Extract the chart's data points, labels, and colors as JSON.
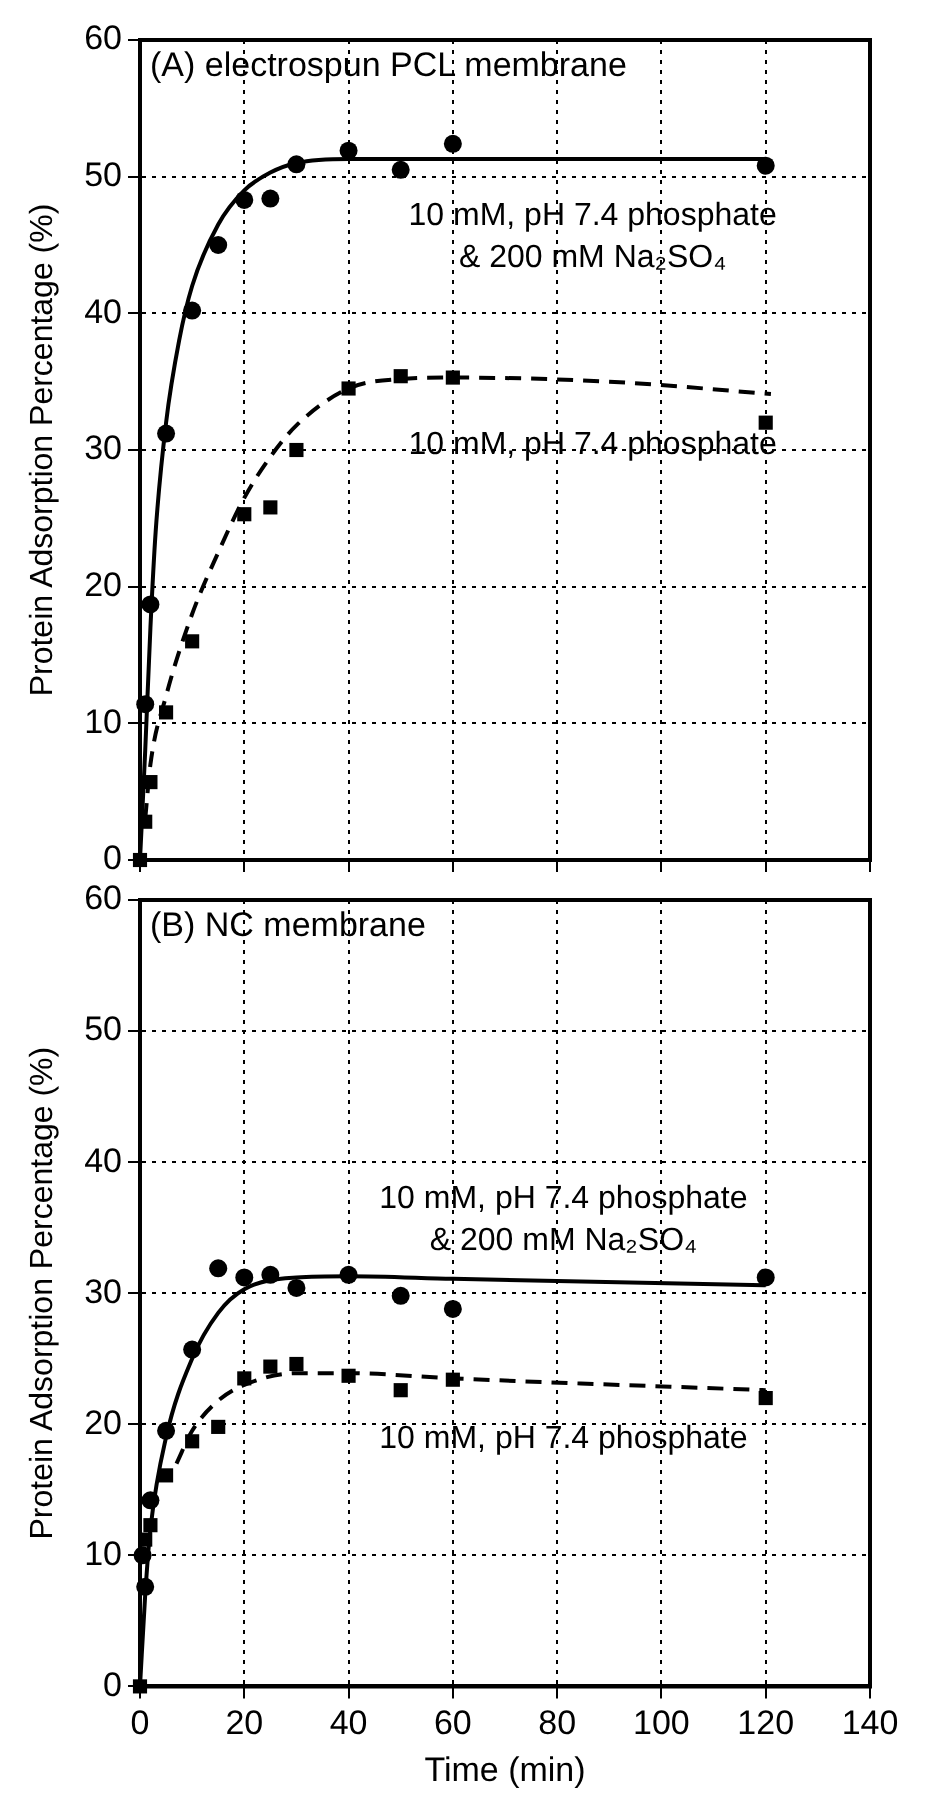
{
  "chart_data": [
    {
      "type": "scatter",
      "title": "(A) electrospun PCL membrane",
      "ylabel": "Protein Adsorption Percentage (%)",
      "xlim": [
        0,
        140
      ],
      "xticks": [
        0,
        20,
        40,
        60,
        80,
        100,
        120,
        140
      ],
      "ylim": [
        0,
        60
      ],
      "yticks": [
        0,
        10,
        20,
        30,
        40,
        50,
        60
      ],
      "grid": true,
      "legend": false,
      "tick_labels": "y",
      "series": [
        {
          "name": "10 mM, pH 7.4 phosphate & 200 mM Na₂SO₄",
          "type": "scatter",
          "marker": "circle",
          "color": "#000000",
          "x": [
            1,
            2,
            5,
            10,
            15,
            20,
            25,
            30,
            40,
            50,
            60,
            120
          ],
          "values": [
            11.4,
            18.7,
            31.2,
            40.2,
            45,
            48.3,
            48.4,
            50.9,
            51.9,
            50.5,
            52.4,
            50.8
          ]
        },
        {
          "name": "10 mM, pH 7.4 phosphate",
          "type": "scatter",
          "marker": "square",
          "color": "#000000",
          "x": [
            0,
            1,
            2,
            5,
            10,
            20,
            25,
            30,
            40,
            50,
            60,
            120
          ],
          "values": [
            0,
            2.8,
            5.7,
            10.8,
            16,
            25.3,
            25.8,
            30,
            34.5,
            35.4,
            35.3,
            32
          ]
        },
        {
          "type": "line",
          "line_style": "solid",
          "color": "#000000",
          "x": [
            0,
            1,
            2,
            3,
            5,
            7.5,
            10,
            15,
            20,
            25,
            30,
            40,
            60,
            120
          ],
          "values": [
            0,
            8,
            17,
            24,
            32,
            38,
            42,
            46.5,
            49,
            50.3,
            51,
            51.3,
            51.3,
            51.3
          ]
        },
        {
          "type": "line",
          "line_style": "dashed",
          "color": "#000000",
          "x": [
            1,
            2,
            5,
            10,
            15,
            20,
            25,
            30,
            40,
            50,
            60,
            90,
            121
          ],
          "values": [
            3,
            7,
            12,
            18,
            22.5,
            26.5,
            29.5,
            31.8,
            34.5,
            35.2,
            35.3,
            35,
            34.1
          ]
        }
      ]
    },
    {
      "type": "scatter",
      "title": "(B) NC membrane",
      "xlabel": "Time (min)",
      "ylabel": "Protein Adsorption Percentage (%)",
      "xlim": [
        0,
        140
      ],
      "xticks": [
        0,
        20,
        40,
        60,
        80,
        100,
        120,
        140
      ],
      "ylim": [
        0,
        60
      ],
      "yticks": [
        0,
        10,
        20,
        30,
        40,
        50,
        60
      ],
      "grid": true,
      "legend": false,
      "series": [
        {
          "name": "10 mM, pH 7.4 phosphate & 200 mM Na₂SO₄",
          "type": "scatter",
          "marker": "circle",
          "color": "#000000",
          "x": [
            0.5,
            1,
            2,
            5,
            10,
            15,
            20,
            25,
            30,
            40,
            50,
            60,
            120
          ],
          "values": [
            10,
            7.6,
            14.2,
            19.5,
            25.7,
            31.9,
            31.2,
            31.4,
            30.4,
            31.4,
            29.8,
            28.8,
            31.2
          ]
        },
        {
          "name": "10 mM, pH 7.4 phosphate",
          "type": "scatter",
          "marker": "square",
          "color": "#000000",
          "x": [
            0,
            1,
            2,
            5,
            10,
            15,
            20,
            25,
            30,
            40,
            50,
            60,
            120
          ],
          "values": [
            0,
            11.2,
            12.3,
            16.1,
            18.7,
            19.8,
            23.5,
            24.4,
            24.6,
            23.7,
            22.6,
            23.4,
            22
          ]
        },
        {
          "type": "line",
          "line_style": "solid",
          "color": "#000000",
          "x": [
            0,
            1,
            2,
            5,
            10,
            15,
            20,
            30,
            40,
            60,
            120
          ],
          "values": [
            0,
            7,
            12,
            19,
            25,
            28.5,
            30.3,
            31.2,
            31.3,
            31.1,
            30.6
          ]
        },
        {
          "type": "line",
          "line_style": "dashed",
          "color": "#000000",
          "x": [
            7,
            10,
            15,
            20,
            30,
            40,
            60,
            120
          ],
          "values": [
            17,
            19.5,
            21.8,
            23,
            23.9,
            23.9,
            23.5,
            22.6
          ]
        }
      ]
    }
  ]
}
